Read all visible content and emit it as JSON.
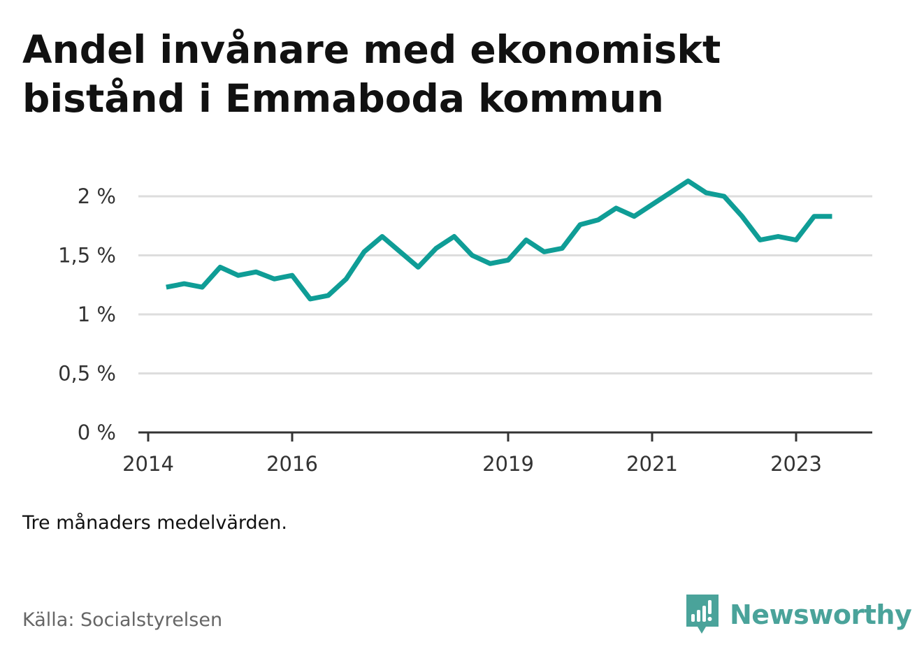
{
  "title": "Andel invånare med ekonomiskt bistånd i Emmaboda kommun",
  "note": "Tre månaders medelvärden.",
  "source": "Källa: Socialstyrelsen",
  "brand": "Newsworthy",
  "colors": {
    "line": "#0f9d96",
    "grid": "#dddddd",
    "axis": "#333333",
    "brand": "#4aa39a"
  },
  "chart_data": {
    "type": "line",
    "title": "Andel invånare med ekonomiskt bistånd i Emmaboda kommun",
    "xlabel": "",
    "ylabel": "",
    "ylim": [
      0,
      2.2
    ],
    "xlim": [
      "2014-01",
      "2024-01"
    ],
    "grid": true,
    "y_ticks": [
      {
        "value": 0,
        "label": "0 %"
      },
      {
        "value": 0.5,
        "label": "0,5 %"
      },
      {
        "value": 1,
        "label": "1 %"
      },
      {
        "value": 1.5,
        "label": "1,5 %"
      },
      {
        "value": 2,
        "label": "2 %"
      }
    ],
    "x_ticks": [
      {
        "value": "2014-01",
        "label": "2014"
      },
      {
        "value": "2016-01",
        "label": "2016"
      },
      {
        "value": "2019-01",
        "label": "2019"
      },
      {
        "value": "2021-01",
        "label": "2021"
      },
      {
        "value": "2023-01",
        "label": "2023"
      }
    ],
    "series": [
      {
        "x": [
          "2014-04",
          "2014-07",
          "2014-10",
          "2015-01",
          "2015-04",
          "2015-07",
          "2015-10",
          "2016-01",
          "2016-04",
          "2016-07",
          "2016-10",
          "2017-01",
          "2017-04",
          "2017-07",
          "2017-10",
          "2018-01",
          "2018-04",
          "2018-07",
          "2018-10",
          "2019-01",
          "2019-04",
          "2019-07",
          "2019-10",
          "2020-01",
          "2020-04",
          "2020-07",
          "2020-10",
          "2021-01",
          "2021-04",
          "2021-07",
          "2021-10",
          "2022-01",
          "2022-04",
          "2022-07",
          "2022-10",
          "2023-01",
          "2023-04",
          "2023-07"
        ],
        "values": [
          1.23,
          1.26,
          1.23,
          1.4,
          1.33,
          1.36,
          1.3,
          1.33,
          1.13,
          1.16,
          1.3,
          1.53,
          1.66,
          1.53,
          1.4,
          1.56,
          1.66,
          1.5,
          1.43,
          1.46,
          1.63,
          1.53,
          1.56,
          1.76,
          1.8,
          1.9,
          1.83,
          1.93,
          2.03,
          2.13,
          2.03,
          2.0,
          1.83,
          1.63,
          1.66,
          1.63,
          1.83,
          1.83
        ]
      }
    ]
  }
}
